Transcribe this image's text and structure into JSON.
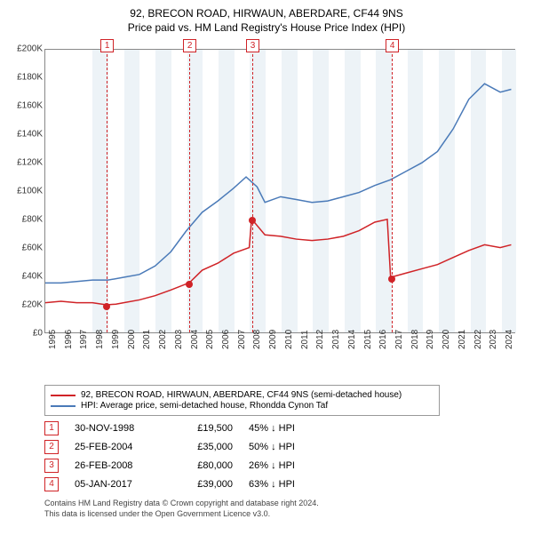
{
  "title_line1": "92, BRECON ROAD, HIRWAUN, ABERDARE, CF44 9NS",
  "title_line2": "Price paid vs. HM Land Registry's House Price Index (HPI)",
  "chart": {
    "type": "line",
    "x_domain": [
      1995,
      2024.9
    ],
    "y_domain": [
      0,
      200000
    ],
    "y_ticks": [
      0,
      20000,
      40000,
      60000,
      80000,
      100000,
      120000,
      140000,
      160000,
      180000,
      200000
    ],
    "y_tick_labels": [
      "£0",
      "£20K",
      "£40K",
      "£60K",
      "£80K",
      "£100K",
      "£120K",
      "£140K",
      "£160K",
      "£180K",
      "£200K"
    ],
    "x_ticks": [
      1995,
      1996,
      1997,
      1998,
      1999,
      2000,
      2001,
      2002,
      2003,
      2004,
      2005,
      2006,
      2007,
      2008,
      2009,
      2010,
      2011,
      2012,
      2013,
      2014,
      2015,
      2016,
      2017,
      2018,
      2019,
      2020,
      2021,
      2022,
      2023,
      2024
    ],
    "bands": [
      [
        1998,
        1999
      ],
      [
        2000,
        2001
      ],
      [
        2002,
        2003
      ],
      [
        2004,
        2005
      ],
      [
        2006,
        2007
      ],
      [
        2008,
        2009
      ],
      [
        2010,
        2011
      ],
      [
        2012,
        2013
      ],
      [
        2014,
        2015
      ],
      [
        2016,
        2017
      ],
      [
        2018,
        2019
      ],
      [
        2020,
        2021
      ],
      [
        2022,
        2023
      ],
      [
        2024,
        2024.9
      ]
    ],
    "colors": {
      "series1": "#d02327",
      "series2": "#4a7ab8",
      "band": "#edf3f7",
      "marker_line": "#d02327",
      "grid": "#e8e8e8",
      "border": "#888888"
    },
    "line_width": 1.5,
    "series1": [
      [
        1995,
        21000
      ],
      [
        1996,
        22000
      ],
      [
        1997,
        21000
      ],
      [
        1998,
        21000
      ],
      [
        1998.9,
        19500
      ],
      [
        1998.92,
        19500
      ],
      [
        1999.5,
        20000
      ],
      [
        2000,
        21000
      ],
      [
        2001,
        23000
      ],
      [
        2002,
        26000
      ],
      [
        2003,
        30000
      ],
      [
        2004.15,
        35000
      ],
      [
        2004.17,
        35000
      ],
      [
        2005,
        44000
      ],
      [
        2006,
        49000
      ],
      [
        2007,
        56000
      ],
      [
        2008,
        60000
      ],
      [
        2008.15,
        80000
      ],
      [
        2008.17,
        80000
      ],
      [
        2009,
        69000
      ],
      [
        2010,
        68000
      ],
      [
        2011,
        66000
      ],
      [
        2012,
        65000
      ],
      [
        2013,
        66000
      ],
      [
        2014,
        68000
      ],
      [
        2015,
        72000
      ],
      [
        2016,
        78000
      ],
      [
        2016.8,
        80000
      ],
      [
        2017.01,
        39000
      ],
      [
        2017.03,
        39000
      ],
      [
        2018,
        42000
      ],
      [
        2019,
        45000
      ],
      [
        2020,
        48000
      ],
      [
        2021,
        53000
      ],
      [
        2022,
        58000
      ],
      [
        2023,
        62000
      ],
      [
        2024,
        60000
      ],
      [
        2024.7,
        62000
      ]
    ],
    "series2": [
      [
        1995,
        35000
      ],
      [
        1996,
        35000
      ],
      [
        1997,
        36000
      ],
      [
        1998,
        37000
      ],
      [
        1999,
        37000
      ],
      [
        2000,
        39000
      ],
      [
        2001,
        41000
      ],
      [
        2002,
        47000
      ],
      [
        2003,
        57000
      ],
      [
        2004,
        72000
      ],
      [
        2005,
        85000
      ],
      [
        2006,
        93000
      ],
      [
        2007,
        102000
      ],
      [
        2007.8,
        110000
      ],
      [
        2008.5,
        103000
      ],
      [
        2009,
        92000
      ],
      [
        2010,
        96000
      ],
      [
        2011,
        94000
      ],
      [
        2012,
        92000
      ],
      [
        2013,
        93000
      ],
      [
        2014,
        96000
      ],
      [
        2015,
        99000
      ],
      [
        2016,
        104000
      ],
      [
        2017,
        108000
      ],
      [
        2018,
        114000
      ],
      [
        2019,
        120000
      ],
      [
        2020,
        128000
      ],
      [
        2021,
        144000
      ],
      [
        2022,
        165000
      ],
      [
        2023,
        176000
      ],
      [
        2024,
        170000
      ],
      [
        2024.7,
        172000
      ]
    ],
    "sale_points": [
      {
        "n": "1",
        "year": 1998.9,
        "price": 19500
      },
      {
        "n": "2",
        "year": 2004.15,
        "price": 35000
      },
      {
        "n": "3",
        "year": 2008.15,
        "price": 80000
      },
      {
        "n": "4",
        "year": 2017.01,
        "price": 39000
      }
    ]
  },
  "legend": {
    "item1": "92, BRECON ROAD, HIRWAUN, ABERDARE, CF44 9NS (semi-detached house)",
    "item2": "HPI: Average price, semi-detached house, Rhondda Cynon Taf"
  },
  "sales": [
    {
      "n": "1",
      "date": "30-NOV-1998",
      "price": "£19,500",
      "pct": "45% ↓ HPI"
    },
    {
      "n": "2",
      "date": "25-FEB-2004",
      "price": "£35,000",
      "pct": "50% ↓ HPI"
    },
    {
      "n": "3",
      "date": "26-FEB-2008",
      "price": "£80,000",
      "pct": "26% ↓ HPI"
    },
    {
      "n": "4",
      "date": "05-JAN-2017",
      "price": "£39,000",
      "pct": "63% ↓ HPI"
    }
  ],
  "footer_line1": "Contains HM Land Registry data © Crown copyright and database right 2024.",
  "footer_line2": "This data is licensed under the Open Government Licence v3.0."
}
